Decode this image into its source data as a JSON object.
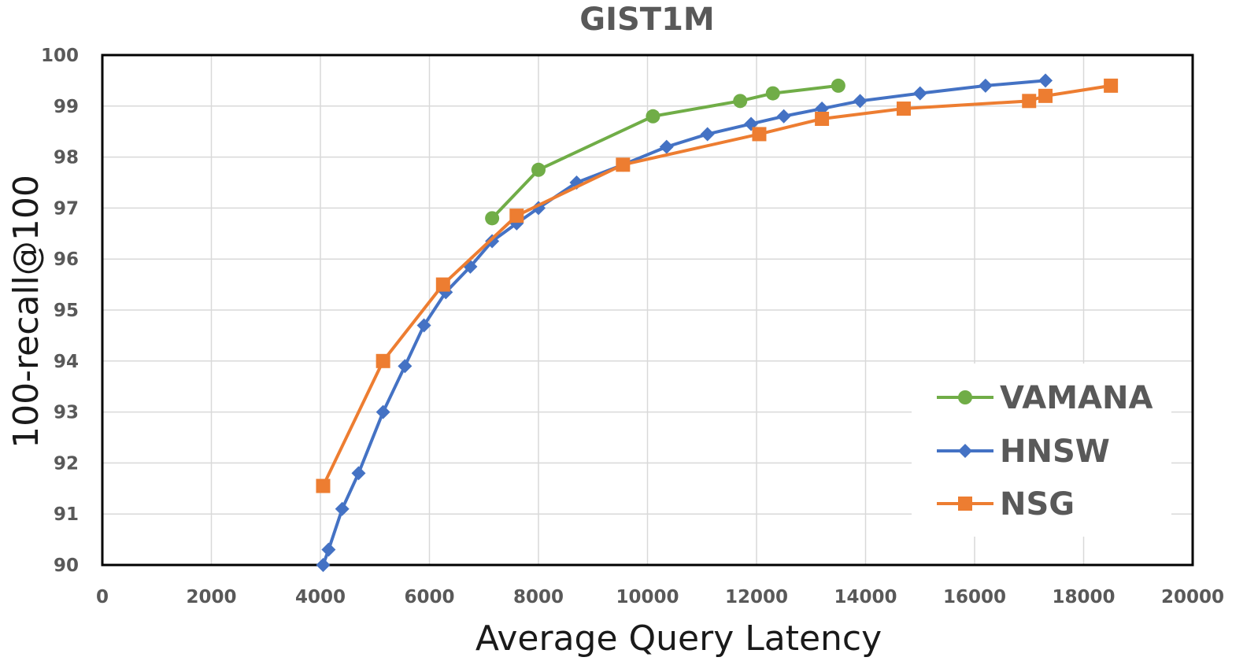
{
  "chart_data": {
    "type": "line",
    "title": "GIST1M",
    "xlabel": "Average Query Latency",
    "ylabel": "100-recall@100",
    "xlim": [
      0,
      20000
    ],
    "ylim": [
      90,
      100
    ],
    "xticks": [
      0,
      2000,
      4000,
      6000,
      8000,
      10000,
      12000,
      14000,
      16000,
      18000,
      20000
    ],
    "yticks": [
      90,
      91,
      92,
      93,
      94,
      95,
      96,
      97,
      98,
      99,
      100
    ],
    "grid": true,
    "legend_position": "bottom-right",
    "series": [
      {
        "name": "VAMANA",
        "color": "#70ad47",
        "marker": "circle",
        "x": [
          7150,
          8000,
          10100,
          11700,
          12300,
          13500
        ],
        "y": [
          96.8,
          97.75,
          98.8,
          99.1,
          99.25,
          99.4
        ]
      },
      {
        "name": "HNSW",
        "color": "#4472c4",
        "marker": "diamond",
        "x": [
          4050,
          4150,
          4400,
          4700,
          5150,
          5550,
          5900,
          6300,
          6750,
          7150,
          7600,
          8000,
          8700,
          9550,
          10350,
          11100,
          11900,
          12500,
          13200,
          13900,
          15000,
          16200,
          17300
        ],
        "y": [
          90.0,
          90.3,
          91.1,
          91.8,
          93.0,
          93.9,
          94.7,
          95.35,
          95.85,
          96.35,
          96.7,
          97.0,
          97.5,
          97.85,
          98.2,
          98.45,
          98.65,
          98.8,
          98.95,
          99.1,
          99.25,
          99.4,
          99.5
        ]
      },
      {
        "name": "NSG",
        "color": "#ed7d31",
        "marker": "square",
        "x": [
          4050,
          5150,
          6250,
          7600,
          9550,
          12050,
          13200,
          14700,
          17000,
          17300,
          18500
        ],
        "y": [
          91.55,
          94.0,
          95.5,
          96.85,
          97.85,
          98.45,
          98.75,
          98.95,
          99.1,
          99.2,
          99.4
        ]
      }
    ]
  }
}
